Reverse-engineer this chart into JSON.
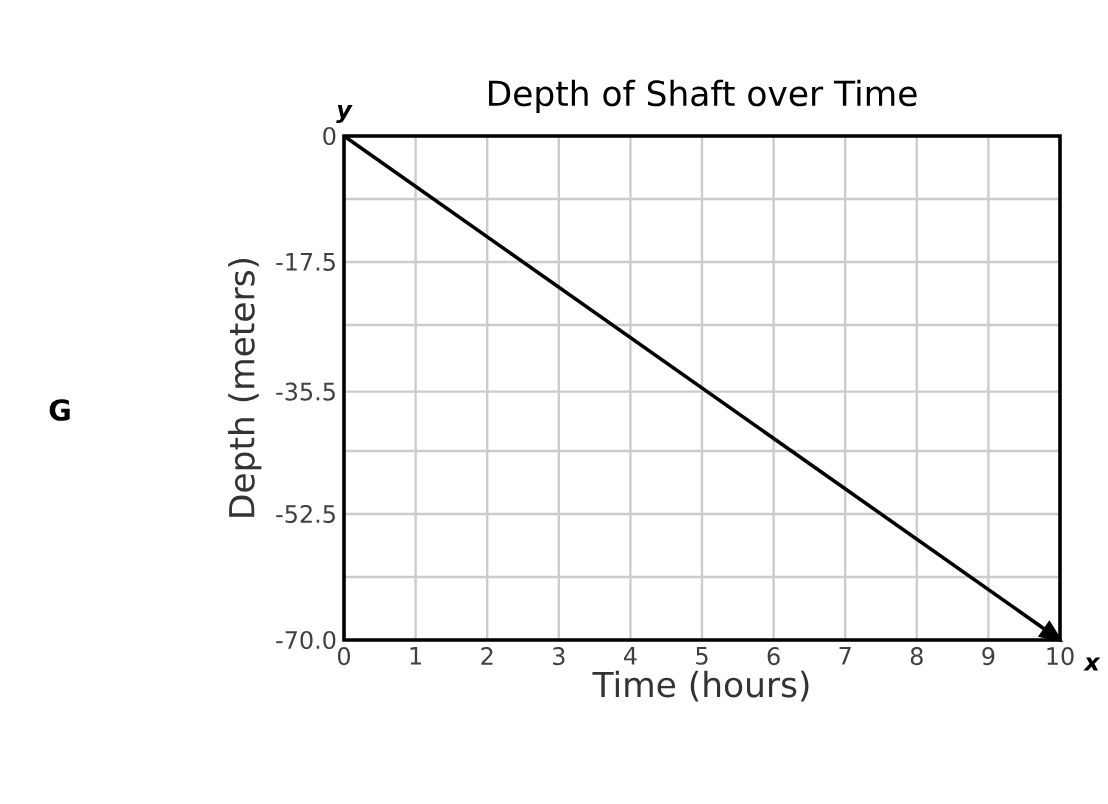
{
  "chart_data": {
    "type": "line",
    "title": "Depth of Shaft over Time",
    "xlabel": "Time (hours)",
    "ylabel": "Depth (meters)",
    "x": [
      0,
      10
    ],
    "series": [
      {
        "color": "#000000",
        "values": [
          0,
          -70
        ]
      }
    ],
    "xlim": [
      0,
      10
    ],
    "xticks": [
      0,
      1,
      2,
      3,
      4,
      5,
      6,
      7,
      8,
      9,
      10
    ],
    "ylim": [
      -70,
      0
    ],
    "yticks": [
      0,
      {
        "value": -8.75,
        "label": null
      },
      -17.5,
      {
        "value": -26.25,
        "label": null
      },
      -35.5,
      {
        "value": -43.75,
        "label": null
      },
      -52.5,
      {
        "value": -61.25,
        "label": null
      },
      {
        "value": -70,
        "label": "-70.0"
      }
    ],
    "grid": true,
    "marker": "none",
    "line_style": "solid",
    "annotations": [
      "G",
      "y",
      "x"
    ]
  }
}
